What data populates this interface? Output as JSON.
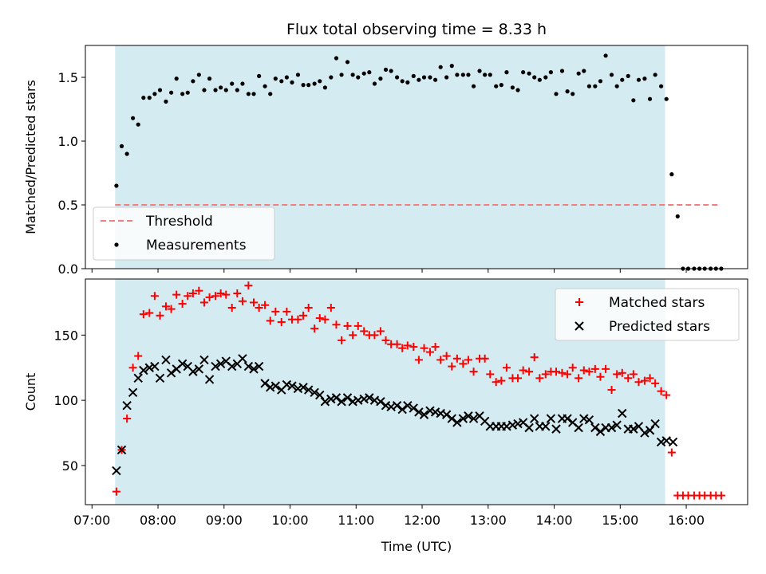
{
  "chart_data": {
    "title": "Flux total observing time = 8.33 h",
    "xlabel": "Time (UTC)",
    "x_units": "hours UTC",
    "xlim": [
      6.9,
      16.93
    ],
    "x_ticks": [
      7,
      8,
      9,
      10,
      11,
      12,
      13,
      14,
      15,
      16
    ],
    "x_tick_labels": [
      "07:00",
      "08:00",
      "09:00",
      "10:00",
      "11:00",
      "12:00",
      "13:00",
      "14:00",
      "15:00",
      "16:00"
    ],
    "shaded_region": {
      "x": [
        7.35,
        15.68
      ],
      "color": "#d4ebf1"
    },
    "panels": [
      {
        "type": "scatter",
        "ylabel": "Matched/Predicted stars",
        "ylim": [
          0,
          1.75
        ],
        "y_ticks": [
          0.0,
          0.5,
          1.0,
          1.5
        ],
        "y_tick_labels": [
          "0.0",
          "0.5",
          "1.0",
          "1.5"
        ],
        "legend_position": "lower-left",
        "series": [
          {
            "name": "Threshold",
            "kind": "line",
            "style": "dashed",
            "color": "#f08080",
            "x": [
              7.35,
              16.5
            ],
            "y": [
              0.5,
              0.5
            ]
          },
          {
            "name": "Measurements",
            "kind": "scatter",
            "marker": "dot",
            "color": "#000000",
            "x": [
              7.37,
              7.45,
              7.53,
              7.62,
              7.7,
              7.78,
              7.87,
              7.95,
              8.03,
              8.12,
              8.2,
              8.28,
              8.37,
              8.45,
              8.53,
              8.62,
              8.7,
              8.78,
              8.87,
              8.95,
              9.03,
              9.12,
              9.2,
              9.28,
              9.37,
              9.45,
              9.53,
              9.62,
              9.7,
              9.78,
              9.87,
              9.95,
              10.03,
              10.12,
              10.2,
              10.28,
              10.37,
              10.45,
              10.53,
              10.62,
              10.7,
              10.78,
              10.87,
              10.95,
              11.03,
              11.12,
              11.2,
              11.28,
              11.37,
              11.45,
              11.53,
              11.62,
              11.7,
              11.78,
              11.87,
              11.95,
              12.03,
              12.12,
              12.2,
              12.28,
              12.37,
              12.45,
              12.53,
              12.62,
              12.7,
              12.78,
              12.87,
              12.95,
              13.03,
              13.12,
              13.2,
              13.28,
              13.37,
              13.45,
              13.53,
              13.62,
              13.7,
              13.78,
              13.87,
              13.95,
              14.03,
              14.12,
              14.2,
              14.28,
              14.37,
              14.45,
              14.53,
              14.62,
              14.7,
              14.78,
              14.87,
              14.95,
              15.03,
              15.12,
              15.2,
              15.28,
              15.37,
              15.45,
              15.53,
              15.62,
              15.7,
              15.78,
              15.87,
              15.95,
              16.03,
              16.12,
              16.2,
              16.28,
              16.37,
              16.45,
              16.53
            ],
            "y": [
              0.65,
              0.96,
              0.9,
              1.18,
              1.13,
              1.34,
              1.34,
              1.37,
              1.4,
              1.31,
              1.38,
              1.49,
              1.37,
              1.38,
              1.47,
              1.52,
              1.4,
              1.49,
              1.4,
              1.42,
              1.4,
              1.45,
              1.4,
              1.45,
              1.37,
              1.37,
              1.51,
              1.43,
              1.37,
              1.49,
              1.47,
              1.5,
              1.46,
              1.52,
              1.44,
              1.44,
              1.45,
              1.47,
              1.42,
              1.5,
              1.65,
              1.52,
              1.62,
              1.52,
              1.5,
              1.53,
              1.54,
              1.45,
              1.49,
              1.56,
              1.55,
              1.5,
              1.47,
              1.46,
              1.51,
              1.48,
              1.5,
              1.5,
              1.48,
              1.58,
              1.5,
              1.59,
              1.52,
              1.52,
              1.52,
              1.43,
              1.55,
              1.52,
              1.52,
              1.43,
              1.44,
              1.54,
              1.42,
              1.4,
              1.54,
              1.53,
              1.5,
              1.48,
              1.5,
              1.54,
              1.37,
              1.55,
              1.39,
              1.37,
              1.53,
              1.55,
              1.43,
              1.43,
              1.47,
              1.67,
              1.52,
              1.43,
              1.48,
              1.51,
              1.32,
              1.48,
              1.49,
              1.33,
              1.52,
              1.43,
              1.33,
              0.74,
              0.41,
              0.0,
              0.0,
              0.0,
              0.0,
              0.0,
              0.0,
              0.0,
              0.0
            ]
          }
        ]
      },
      {
        "type": "scatter",
        "ylabel": "Count",
        "ylim": [
          20,
          193
        ],
        "y_ticks": [
          50,
          100,
          150
        ],
        "y_tick_labels": [
          "50",
          "100",
          "150"
        ],
        "legend_position": "upper-right",
        "series": [
          {
            "name": "Matched stars",
            "kind": "scatter",
            "marker": "plus",
            "color": "#ff0000",
            "x": [
              7.37,
              7.45,
              7.53,
              7.62,
              7.7,
              7.78,
              7.87,
              7.95,
              8.03,
              8.12,
              8.2,
              8.28,
              8.37,
              8.45,
              8.53,
              8.62,
              8.7,
              8.78,
              8.87,
              8.95,
              9.03,
              9.12,
              9.2,
              9.28,
              9.37,
              9.45,
              9.53,
              9.62,
              9.7,
              9.78,
              9.87,
              9.95,
              10.03,
              10.12,
              10.2,
              10.28,
              10.37,
              10.45,
              10.53,
              10.62,
              10.7,
              10.78,
              10.87,
              10.95,
              11.03,
              11.12,
              11.2,
              11.28,
              11.37,
              11.45,
              11.53,
              11.62,
              11.7,
              11.78,
              11.87,
              11.95,
              12.03,
              12.12,
              12.2,
              12.28,
              12.37,
              12.45,
              12.53,
              12.62,
              12.7,
              12.78,
              12.87,
              12.95,
              13.03,
              13.12,
              13.2,
              13.28,
              13.37,
              13.45,
              13.53,
              13.62,
              13.7,
              13.78,
              13.87,
              13.95,
              14.03,
              14.12,
              14.2,
              14.28,
              14.37,
              14.45,
              14.53,
              14.62,
              14.7,
              14.78,
              14.87,
              14.95,
              15.03,
              15.12,
              15.2,
              15.28,
              15.37,
              15.45,
              15.53,
              15.62,
              15.7,
              15.78,
              15.87,
              15.95,
              16.03,
              16.12,
              16.2,
              16.28,
              16.37,
              16.45,
              16.53
            ],
            "y": [
              30,
              62,
              86,
              125,
              134,
              166,
              167,
              180,
              165,
              172,
              170,
              181,
              174,
              180,
              182,
              184,
              175,
              179,
              180,
              182,
              181,
              171,
              182,
              176,
              188,
              175,
              171,
              173,
              161,
              168,
              160,
              168,
              162,
              162,
              165,
              171,
              155,
              163,
              162,
              171,
              158,
              146,
              157,
              150,
              157,
              153,
              150,
              150,
              153,
              146,
              143,
              143,
              140,
              142,
              141,
              131,
              140,
              137,
              141,
              131,
              134,
              126,
              132,
              128,
              131,
              122,
              132,
              132,
              120,
              114,
              115,
              125,
              117,
              117,
              123,
              122,
              133,
              117,
              120,
              122,
              122,
              121,
              120,
              125,
              117,
              123,
              122,
              124,
              118,
              124,
              108,
              120,
              121,
              117,
              120,
              114,
              115,
              117,
              113,
              107,
              104,
              60,
              27,
              27,
              27,
              27,
              27,
              27,
              27,
              27,
              27
            ]
          },
          {
            "name": "Predicted stars",
            "kind": "scatter",
            "marker": "x",
            "color": "#000000",
            "x": [
              7.37,
              7.45,
              7.53,
              7.62,
              7.7,
              7.78,
              7.87,
              7.95,
              8.03,
              8.12,
              8.2,
              8.28,
              8.37,
              8.45,
              8.53,
              8.62,
              8.7,
              8.78,
              8.87,
              8.95,
              9.03,
              9.12,
              9.2,
              9.28,
              9.37,
              9.45,
              9.53,
              9.62,
              9.7,
              9.78,
              9.87,
              9.95,
              10.03,
              10.12,
              10.2,
              10.28,
              10.37,
              10.45,
              10.53,
              10.62,
              10.7,
              10.78,
              10.87,
              10.95,
              11.03,
              11.12,
              11.2,
              11.28,
              11.37,
              11.45,
              11.53,
              11.62,
              11.7,
              11.78,
              11.87,
              11.95,
              12.03,
              12.12,
              12.2,
              12.28,
              12.37,
              12.45,
              12.53,
              12.62,
              12.7,
              12.78,
              12.87,
              12.95,
              13.03,
              13.12,
              13.2,
              13.28,
              13.37,
              13.45,
              13.53,
              13.62,
              13.7,
              13.78,
              13.87,
              13.95,
              14.03,
              14.12,
              14.2,
              14.28,
              14.37,
              14.45,
              14.53,
              14.62,
              14.7,
              14.78,
              14.87,
              14.95,
              15.03,
              15.12,
              15.2,
              15.28,
              15.37,
              15.45,
              15.53,
              15.62,
              15.7,
              15.8
            ],
            "y": [
              46,
              62,
              96,
              106,
              117,
              123,
              125,
              126,
              117,
              131,
              121,
              124,
              128,
              126,
              122,
              124,
              131,
              116,
              126,
              128,
              130,
              126,
              128,
              132,
              126,
              124,
              126,
              113,
              110,
              111,
              108,
              112,
              111,
              109,
              110,
              108,
              106,
              104,
              99,
              101,
              102,
              99,
              102,
              99,
              100,
              101,
              102,
              100,
              99,
              96,
              95,
              96,
              93,
              96,
              94,
              91,
              89,
              92,
              91,
              90,
              89,
              86,
              83,
              86,
              88,
              86,
              88,
              84,
              80,
              80,
              80,
              80,
              81,
              82,
              83,
              79,
              86,
              80,
              80,
              86,
              78,
              86,
              86,
              83,
              79,
              86,
              85,
              79,
              76,
              79,
              79,
              81,
              90,
              78,
              78,
              80,
              75,
              77,
              82,
              68,
              69,
              68
            ]
          }
        ]
      }
    ]
  }
}
